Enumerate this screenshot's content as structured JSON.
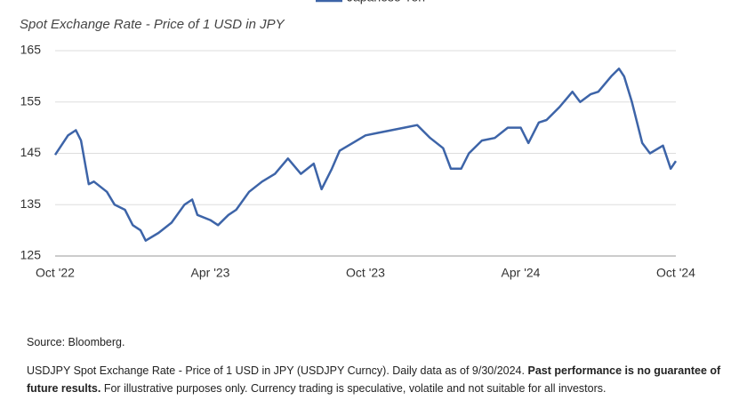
{
  "chart_data": {
    "type": "line",
    "title": "Spot Exchange Rate - Price of 1 USD in JPY",
    "x": [
      0,
      0.5,
      0.8,
      1.0,
      1.3,
      1.5,
      2.0,
      2.3,
      2.7,
      3.0,
      3.3,
      3.5,
      4.0,
      4.5,
      5.0,
      5.3,
      5.5,
      6.0,
      6.3,
      6.7,
      7.0,
      7.5,
      8.0,
      8.5,
      9.0,
      9.5,
      10.0,
      10.3,
      10.7,
      11.0,
      11.5,
      12.0,
      12.5,
      13.0,
      13.5,
      14.0,
      14.5,
      15.0,
      15.3,
      15.7,
      16.0,
      16.5,
      17.0,
      17.5,
      18.0,
      18.3,
      18.7,
      19.0,
      19.5,
      20.0,
      20.3,
      20.7,
      21.0,
      21.5,
      21.8,
      22.0,
      22.3,
      22.7,
      23.0,
      23.5,
      23.8,
      24.0
    ],
    "series": [
      {
        "name": "Japanese Yen",
        "color": "#3d64a8",
        "values": [
          144.7,
          148.5,
          149.5,
          147.5,
          139,
          139.5,
          137.5,
          135,
          134,
          131,
          130,
          128,
          129.5,
          131.5,
          135,
          136,
          133,
          132,
          131,
          133,
          134,
          137.5,
          139.5,
          141,
          144,
          141,
          143,
          138,
          142,
          145.5,
          147,
          148.5,
          149,
          149.5,
          150,
          150.5,
          148,
          146,
          142,
          142,
          145,
          147.5,
          148,
          150,
          150,
          147,
          151,
          151.5,
          154,
          157,
          155,
          156.5,
          157,
          160,
          161.5,
          160,
          155,
          147,
          145,
          146.5,
          142,
          143.5
        ]
      }
    ],
    "xlim": [
      0,
      24
    ],
    "xticks": [
      {
        "value": 0,
        "label": "Oct '22"
      },
      {
        "value": 6,
        "label": "Apr '23"
      },
      {
        "value": 12,
        "label": "Oct '23"
      },
      {
        "value": 18,
        "label": "Apr '24"
      },
      {
        "value": 24,
        "label": "Oct '24"
      }
    ],
    "ylim": [
      125,
      165
    ],
    "yticks": [
      125,
      135,
      145,
      155,
      165
    ],
    "grid": true
  },
  "notes": {
    "source": "Source: Bloomberg.",
    "description": "USDJPY Spot Exchange Rate - Price of 1 USD in JPY (USDJPY Curncy). Daily data as of 9/30/2024.",
    "disclaimer_bold": "Past performance is no guarantee of future results.",
    "disclaimer": "For illustrative purposes only. Currency trading is speculative, volatile and not suitable for all investors."
  }
}
